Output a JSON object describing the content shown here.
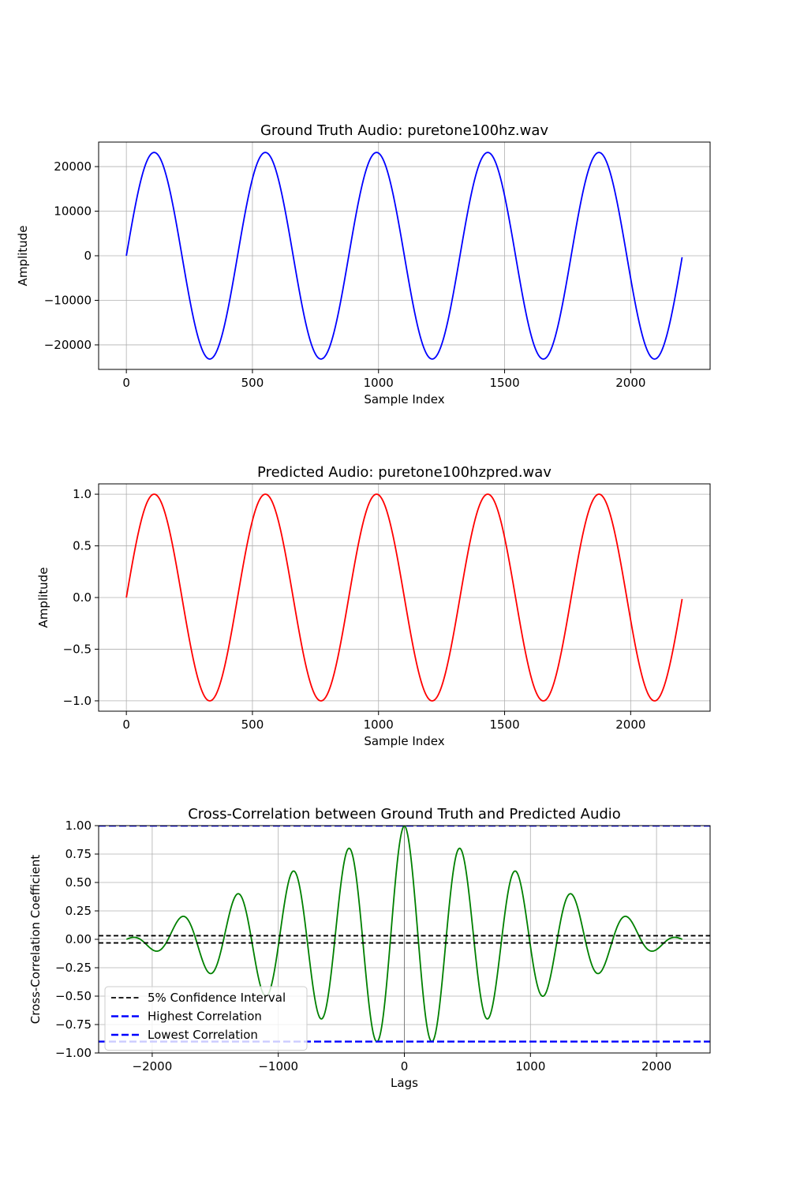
{
  "chart_data": [
    {
      "type": "line",
      "title": "Ground Truth Audio: puretone100hz.wav",
      "xlabel": "Sample Index",
      "ylabel": "Amplitude",
      "xlim": [
        -110,
        2315
      ],
      "ylim": [
        -25500,
        25500
      ],
      "xticks": [
        0,
        500,
        1000,
        1500,
        2000
      ],
      "xtick_labels": [
        "0",
        "500",
        "1000",
        "1500",
        "2000"
      ],
      "yticks": [
        -20000,
        -10000,
        0,
        10000,
        20000
      ],
      "ytick_labels": [
        "−20000",
        "−10000",
        "0",
        "10000",
        "20000"
      ],
      "grid": true,
      "series": [
        {
          "color": "#0000ff",
          "kind": "sine",
          "amplitude": 23170,
          "period": 441,
          "x_start": 0,
          "x_end": 2204
        }
      ]
    },
    {
      "type": "line",
      "title": "Predicted Audio: puretone100hzpred.wav",
      "xlabel": "Sample Index",
      "ylabel": "Amplitude",
      "xlim": [
        -110,
        2315
      ],
      "ylim": [
        -1.1,
        1.1
      ],
      "xticks": [
        0,
        500,
        1000,
        1500,
        2000
      ],
      "xtick_labels": [
        "0",
        "500",
        "1000",
        "1500",
        "2000"
      ],
      "yticks": [
        -1.0,
        -0.5,
        0.0,
        0.5,
        1.0
      ],
      "ytick_labels": [
        "−1.0",
        "−0.5",
        "0.0",
        "0.5",
        "1.0"
      ],
      "grid": true,
      "series": [
        {
          "color": "#ff0000",
          "kind": "sine",
          "amplitude": 1.0,
          "period": 441,
          "x_start": 0,
          "x_end": 2204
        }
      ]
    },
    {
      "type": "line",
      "title": "Cross-Correlation between Ground Truth and Predicted Audio",
      "xlabel": "Lags",
      "ylabel": "Cross-Correlation Coefficient",
      "xlim": [
        -2425,
        2425
      ],
      "ylim": [
        -1.0,
        1.0
      ],
      "xticks": [
        -2000,
        -1000,
        0,
        1000,
        2000
      ],
      "xtick_labels": [
        "−2000",
        "−1000",
        "0",
        "1000",
        "2000"
      ],
      "yticks": [
        -1.0,
        -0.75,
        -0.5,
        -0.25,
        0.0,
        0.25,
        0.5,
        0.75,
        1.0
      ],
      "ytick_labels": [
        "−1.00",
        "−0.75",
        "−0.50",
        "−0.25",
        "0.00",
        "0.25",
        "0.50",
        "0.75",
        "1.00"
      ],
      "grid": true,
      "zero_line": {
        "x": 0,
        "color": "#808080"
      },
      "series": [
        {
          "color": "#008000",
          "kind": "triangular_cosine",
          "period": 441,
          "x_start": -2204,
          "x_end": 2204,
          "peak": 1.0
        }
      ],
      "hlines": [
        {
          "y": 0.0317,
          "color": "#000000",
          "style": "dashed",
          "label": "5% Confidence Interval"
        },
        {
          "y": -0.0317,
          "color": "#000000",
          "style": "dashed"
        },
        {
          "y": 1.0,
          "color": "#0000ff",
          "style": "dashed",
          "label": "Highest Correlation"
        },
        {
          "y": -0.9,
          "color": "#0000ff",
          "style": "dashed",
          "label": "Lowest Correlation"
        }
      ],
      "legend": {
        "placement": "lower-left",
        "entries": [
          {
            "label": "5% Confidence Interval",
            "color": "#000000"
          },
          {
            "label": "Highest Correlation",
            "color": "#0000ff"
          },
          {
            "label": "Lowest Correlation",
            "color": "#0000ff"
          }
        ]
      }
    }
  ]
}
